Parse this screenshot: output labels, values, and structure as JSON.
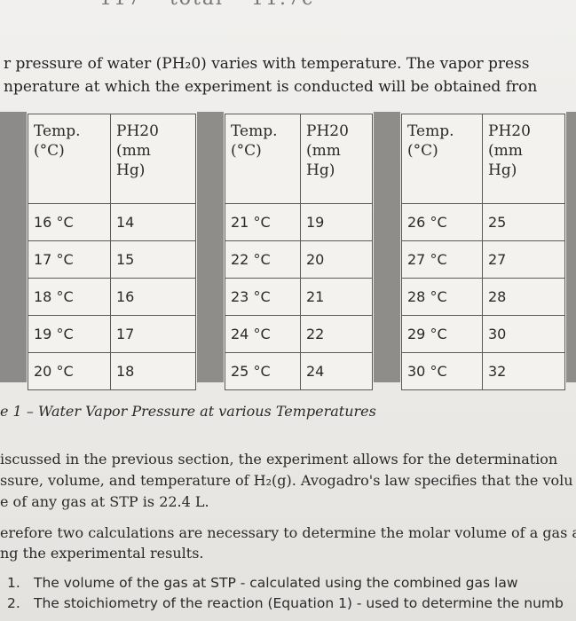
{
  "header_fragment": "– 117 – total – 11.7c",
  "intro": [
    "r pressure of water (PH₂0) varies with temperature. The vapor press",
    "nperature at which the experiment is conducted will be obtained fron"
  ],
  "tables": [
    {
      "header_temp": [
        "Temp.",
        "(°C)"
      ],
      "header_p": [
        "PH20",
        "(mm",
        "Hg)"
      ],
      "rows": [
        {
          "t": "16 °C",
          "p": "14"
        },
        {
          "t": "17 °C",
          "p": "15"
        },
        {
          "t": "18 °C",
          "p": "16"
        },
        {
          "t": "19 °C",
          "p": "17"
        },
        {
          "t": "20 °C",
          "p": "18"
        }
      ]
    },
    {
      "header_temp": [
        "Temp.",
        "(°C)"
      ],
      "header_p": [
        "PH20",
        "(mm",
        "Hg)"
      ],
      "rows": [
        {
          "t": "21 °C",
          "p": "19"
        },
        {
          "t": "22 °C",
          "p": "20"
        },
        {
          "t": "23 °C",
          "p": "21"
        },
        {
          "t": "24 °C",
          "p": "22"
        },
        {
          "t": "25 °C",
          "p": "24"
        }
      ]
    },
    {
      "header_temp": [
        "Temp.",
        "(°C)"
      ],
      "header_p": [
        "PH20",
        "(mm",
        "Hg)"
      ],
      "rows": [
        {
          "t": "26 °C",
          "p": "25"
        },
        {
          "t": "27 °C",
          "p": "27"
        },
        {
          "t": "28 °C",
          "p": "28"
        },
        {
          "t": "29 °C",
          "p": "30"
        },
        {
          "t": "30 °C",
          "p": "32"
        }
      ]
    }
  ],
  "caption": "e 1 – Water Vapor Pressure at various Temperatures",
  "paragraph1": [
    "iscussed in the previous section, the experiment allows for the determination",
    "ssure, volume, and temperature of H₂(g). Avogadro's law specifies that the volu",
    "e of any gas at STP is 22.4 L."
  ],
  "paragraph2": [
    "erefore two calculations are necessary to determine the molar volume of a gas at",
    "ng the experimental results."
  ],
  "list": [
    {
      "num": "1.",
      "text": "The volume of the gas at STP - calculated using the combined gas law"
    },
    {
      "num": "2.",
      "text": "The stoichiometry of the reaction (Equation 1) - used to determine the numb"
    }
  ]
}
